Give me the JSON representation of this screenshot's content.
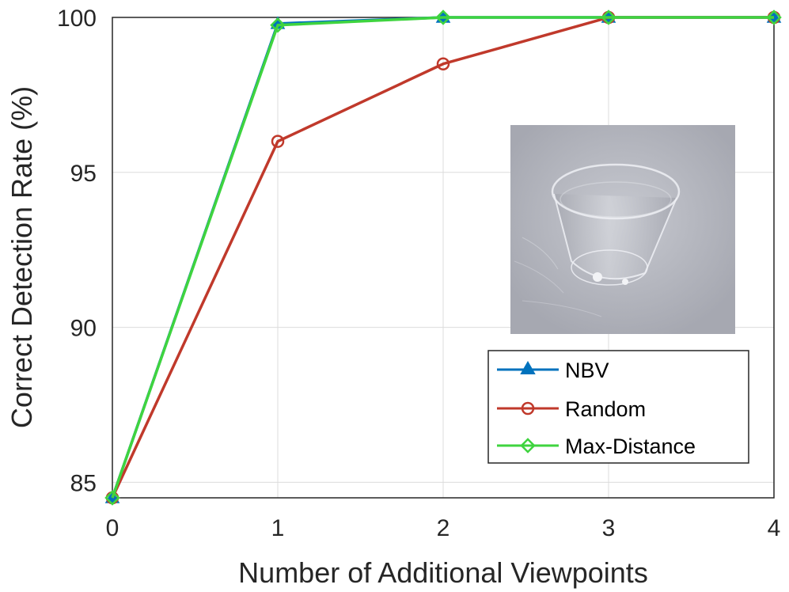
{
  "chart_data": {
    "type": "line",
    "x": [
      0,
      1,
      2,
      3,
      4
    ],
    "xticks": [
      0,
      1,
      2,
      3,
      4
    ],
    "yticks": [
      85,
      90,
      95,
      100
    ],
    "xlim": [
      0,
      4
    ],
    "ylim": [
      84.5,
      100
    ],
    "xlabel": "Number of Additional Viewpoints",
    "ylabel": "Correct Detection Rate (%)",
    "grid": true,
    "legend_position": "bottom-right",
    "series": [
      {
        "name": "NBV",
        "values": [
          84.5,
          99.8,
          100,
          100,
          100
        ],
        "color": "#0072BD",
        "marker": "triangle"
      },
      {
        "name": "Random",
        "values": [
          84.5,
          96.0,
          98.5,
          100,
          100
        ],
        "color": "#C0392B",
        "marker": "circle"
      },
      {
        "name": "Max-Distance",
        "values": [
          84.5,
          99.75,
          100,
          100,
          100
        ],
        "color": "#3FD43F",
        "marker": "diamond"
      }
    ]
  },
  "inset_image": {
    "subject": "transparent plastic cup",
    "background_color": "#a9abb4"
  }
}
